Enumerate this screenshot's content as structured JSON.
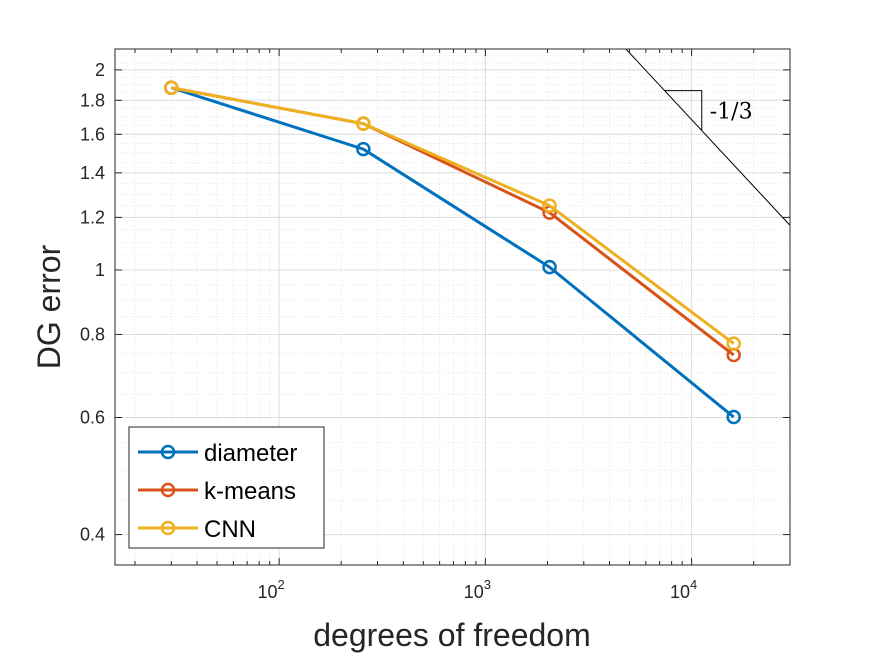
{
  "chart_data": {
    "type": "line",
    "xscale": "log",
    "yscale": "log",
    "xlabel": "degrees of freedom",
    "ylabel": "DG error",
    "xlim": [
      16,
      30000
    ],
    "ylim": [
      0.36,
      2.15
    ],
    "grid": true,
    "minor_grid": true,
    "x_ticks": [
      {
        "value": 100,
        "base": "10",
        "exp": "2"
      },
      {
        "value": 1000,
        "base": "10",
        "exp": "3"
      },
      {
        "value": 10000,
        "base": "10",
        "exp": "4"
      }
    ],
    "y_ticks": [
      {
        "value": 0.4,
        "label": "0.4"
      },
      {
        "value": 0.6,
        "label": "0.6"
      },
      {
        "value": 0.8,
        "label": "0.8"
      },
      {
        "value": 1,
        "label": "1"
      },
      {
        "value": 1.2,
        "label": "1.2"
      },
      {
        "value": 1.4,
        "label": "1.4"
      },
      {
        "value": 1.6,
        "label": "1.6"
      },
      {
        "value": 1.8,
        "label": "1.8"
      },
      {
        "value": 2,
        "label": "2"
      }
    ],
    "series": [
      {
        "name": "diameter",
        "color": "#0072BD",
        "points": [
          [
            30,
            1.88
          ],
          [
            256,
            1.52
          ],
          [
            2048,
            1.01
          ],
          [
            16000,
            0.601
          ]
        ]
      },
      {
        "name": "k-means",
        "color": "#D95319",
        "points": [
          [
            30,
            1.88
          ],
          [
            256,
            1.66
          ],
          [
            2048,
            1.22
          ],
          [
            16000,
            0.745
          ]
        ]
      },
      {
        "name": "CNN",
        "color": "#EDB120",
        "points": [
          [
            30,
            1.88
          ],
          [
            256,
            1.66
          ],
          [
            2048,
            1.25
          ],
          [
            16000,
            0.775
          ]
        ]
      }
    ],
    "slope_triangle": {
      "label": "-1/3",
      "slope": -0.3333
    },
    "legend_position": "bottom-left"
  }
}
